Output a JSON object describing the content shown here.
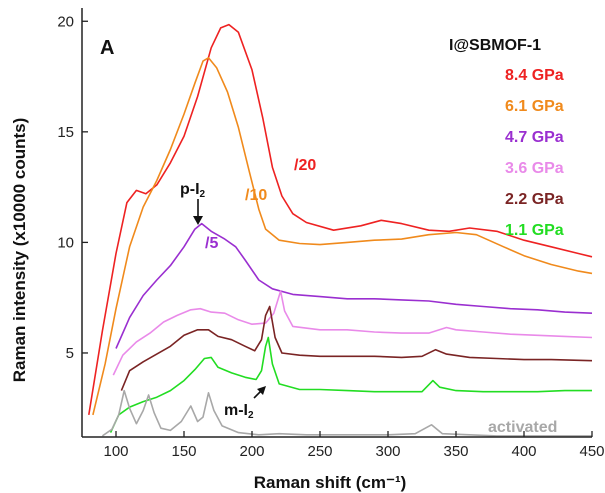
{
  "chart_data": {
    "type": "line",
    "panel_label": "A",
    "legend_title": "I@SBMOF-1",
    "xlabel": "Raman shift (cm⁻¹)",
    "ylabel": "Raman intensity (x10000 counts)",
    "xlim": [
      75,
      450
    ],
    "ylim": [
      1.2,
      20.6
    ],
    "xticks": [
      100,
      150,
      200,
      250,
      300,
      350,
      400,
      450
    ],
    "yticks": [
      5,
      10,
      15,
      20
    ],
    "grid": false,
    "legend_position": "top-right",
    "series": [
      {
        "name": "8.4 GPa",
        "color": "#ee2222",
        "scale_label": "/20",
        "points": [
          [
            80,
            2.2
          ],
          [
            90,
            6
          ],
          [
            100,
            9.5
          ],
          [
            108,
            11.8
          ],
          [
            115,
            12.35
          ],
          [
            122,
            12.2
          ],
          [
            130,
            12.6
          ],
          [
            140,
            13.6
          ],
          [
            150,
            14.8
          ],
          [
            160,
            16.6
          ],
          [
            170,
            18.8
          ],
          [
            177,
            19.7
          ],
          [
            183,
            19.85
          ],
          [
            190,
            19.5
          ],
          [
            200,
            17.8
          ],
          [
            208,
            15.6
          ],
          [
            215,
            13.4
          ],
          [
            222,
            12.1
          ],
          [
            230,
            11.3
          ],
          [
            240,
            10.9
          ],
          [
            260,
            10.55
          ],
          [
            280,
            10.75
          ],
          [
            295,
            11
          ],
          [
            310,
            10.85
          ],
          [
            330,
            10.55
          ],
          [
            345,
            10.5
          ],
          [
            360,
            10.65
          ],
          [
            380,
            10.5
          ],
          [
            400,
            10.1
          ],
          [
            420,
            9.8
          ],
          [
            440,
            9.5
          ],
          [
            450,
            9.35
          ]
        ]
      },
      {
        "name": "6.1 GPa",
        "color": "#f08a1c",
        "scale_label": "/10",
        "points": [
          [
            83,
            2.2
          ],
          [
            92,
            4.5
          ],
          [
            100,
            7
          ],
          [
            110,
            9.8
          ],
          [
            120,
            11.6
          ],
          [
            130,
            12.8
          ],
          [
            140,
            14.2
          ],
          [
            150,
            15.8
          ],
          [
            158,
            17.2
          ],
          [
            164,
            18.2
          ],
          [
            168,
            18.35
          ],
          [
            174,
            17.9
          ],
          [
            182,
            16.8
          ],
          [
            190,
            15.2
          ],
          [
            198,
            13.2
          ],
          [
            205,
            11.5
          ],
          [
            210,
            10.6
          ],
          [
            220,
            10.1
          ],
          [
            235,
            9.95
          ],
          [
            250,
            9.9
          ],
          [
            270,
            10
          ],
          [
            290,
            10.1
          ],
          [
            310,
            10.15
          ],
          [
            330,
            10.35
          ],
          [
            350,
            10.45
          ],
          [
            365,
            10.35
          ],
          [
            385,
            9.8
          ],
          [
            400,
            9.4
          ],
          [
            420,
            9
          ],
          [
            440,
            8.7
          ],
          [
            450,
            8.6
          ]
        ]
      },
      {
        "name": "4.7 GPa",
        "color": "#9a2fd0",
        "scale_label": "/5",
        "points": [
          [
            100,
            5.2
          ],
          [
            110,
            6.6
          ],
          [
            120,
            7.6
          ],
          [
            130,
            8.3
          ],
          [
            140,
            8.95
          ],
          [
            150,
            9.8
          ],
          [
            158,
            10.6
          ],
          [
            163,
            10.85
          ],
          [
            170,
            10.5
          ],
          [
            180,
            10.15
          ],
          [
            188,
            9.8
          ],
          [
            195,
            9.2
          ],
          [
            205,
            8.3
          ],
          [
            215,
            7.9
          ],
          [
            230,
            7.65
          ],
          [
            250,
            7.55
          ],
          [
            270,
            7.45
          ],
          [
            290,
            7.45
          ],
          [
            310,
            7.4
          ],
          [
            330,
            7.35
          ],
          [
            350,
            7.2
          ],
          [
            370,
            7.1
          ],
          [
            390,
            7.0
          ],
          [
            410,
            6.95
          ],
          [
            430,
            6.85
          ],
          [
            450,
            6.8
          ]
        ]
      },
      {
        "name": "3.6 GPa",
        "color": "#e98ae9",
        "scale_label": "",
        "points": [
          [
            98,
            4.0
          ],
          [
            105,
            4.9
          ],
          [
            115,
            5.5
          ],
          [
            125,
            5.9
          ],
          [
            135,
            6.4
          ],
          [
            145,
            6.7
          ],
          [
            155,
            6.95
          ],
          [
            162,
            7.0
          ],
          [
            170,
            6.85
          ],
          [
            180,
            6.8
          ],
          [
            190,
            6.5
          ],
          [
            200,
            6.3
          ],
          [
            210,
            6.35
          ],
          [
            216,
            6.8
          ],
          [
            221,
            7.8
          ],
          [
            224,
            6.9
          ],
          [
            230,
            6.2
          ],
          [
            250,
            6.05
          ],
          [
            270,
            6.05
          ],
          [
            290,
            5.95
          ],
          [
            310,
            5.9
          ],
          [
            330,
            5.9
          ],
          [
            343,
            6.15
          ],
          [
            350,
            6.05
          ],
          [
            370,
            5.95
          ],
          [
            390,
            5.85
          ],
          [
            410,
            5.8
          ],
          [
            430,
            5.75
          ],
          [
            450,
            5.7
          ]
        ]
      },
      {
        "name": "2.2 GPa",
        "color": "#7a2424",
        "scale_label": "",
        "points": [
          [
            104,
            3.3
          ],
          [
            110,
            4.2
          ],
          [
            120,
            4.6
          ],
          [
            130,
            4.95
          ],
          [
            140,
            5.3
          ],
          [
            150,
            5.8
          ],
          [
            160,
            6.05
          ],
          [
            168,
            6.05
          ],
          [
            175,
            5.75
          ],
          [
            185,
            5.6
          ],
          [
            195,
            5.3
          ],
          [
            202,
            5.1
          ],
          [
            207,
            5.6
          ],
          [
            210,
            6.7
          ],
          [
            213,
            7.1
          ],
          [
            217,
            5.7
          ],
          [
            222,
            5.0
          ],
          [
            235,
            4.9
          ],
          [
            250,
            4.85
          ],
          [
            270,
            4.85
          ],
          [
            290,
            4.85
          ],
          [
            310,
            4.8
          ],
          [
            325,
            4.85
          ],
          [
            335,
            5.15
          ],
          [
            343,
            4.95
          ],
          [
            360,
            4.8
          ],
          [
            380,
            4.75
          ],
          [
            400,
            4.7
          ],
          [
            420,
            4.7
          ],
          [
            450,
            4.65
          ]
        ]
      },
      {
        "name": "1.1 GPa",
        "color": "#22dd22",
        "scale_label": "",
        "points": [
          [
            96,
            1.4
          ],
          [
            102,
            2.2
          ],
          [
            110,
            2.55
          ],
          [
            120,
            2.8
          ],
          [
            130,
            3.0
          ],
          [
            140,
            3.3
          ],
          [
            150,
            3.75
          ],
          [
            158,
            4.25
          ],
          [
            165,
            4.75
          ],
          [
            170,
            4.8
          ],
          [
            175,
            4.35
          ],
          [
            185,
            4.1
          ],
          [
            195,
            3.9
          ],
          [
            203,
            3.8
          ],
          [
            207,
            4.2
          ],
          [
            210,
            5.3
          ],
          [
            212,
            5.7
          ],
          [
            215,
            4.5
          ],
          [
            220,
            3.6
          ],
          [
            235,
            3.35
          ],
          [
            250,
            3.35
          ],
          [
            270,
            3.3
          ],
          [
            290,
            3.25
          ],
          [
            310,
            3.25
          ],
          [
            325,
            3.25
          ],
          [
            333,
            3.75
          ],
          [
            338,
            3.45
          ],
          [
            350,
            3.3
          ],
          [
            370,
            3.25
          ],
          [
            390,
            3.25
          ],
          [
            410,
            3.25
          ],
          [
            430,
            3.3
          ],
          [
            450,
            3.3
          ]
        ]
      },
      {
        "name": "activated",
        "color": "#a8a8a8",
        "scale_label": "",
        "points": [
          [
            90,
            1.25
          ],
          [
            97,
            1.55
          ],
          [
            102,
            2.2
          ],
          [
            106,
            3.3
          ],
          [
            110,
            2.5
          ],
          [
            115,
            1.8
          ],
          [
            120,
            2.4
          ],
          [
            124,
            3.1
          ],
          [
            128,
            2.3
          ],
          [
            133,
            1.6
          ],
          [
            140,
            1.5
          ],
          [
            148,
            1.9
          ],
          [
            155,
            2.6
          ],
          [
            160,
            1.9
          ],
          [
            164,
            2.1
          ],
          [
            168,
            3.2
          ],
          [
            172,
            2.4
          ],
          [
            178,
            1.7
          ],
          [
            190,
            1.4
          ],
          [
            205,
            1.3
          ],
          [
            220,
            1.35
          ],
          [
            240,
            1.3
          ],
          [
            260,
            1.3
          ],
          [
            280,
            1.3
          ],
          [
            300,
            1.3
          ],
          [
            320,
            1.35
          ],
          [
            332,
            1.75
          ],
          [
            340,
            1.35
          ],
          [
            360,
            1.3
          ],
          [
            380,
            1.25
          ],
          [
            400,
            1.25
          ],
          [
            420,
            1.25
          ],
          [
            450,
            1.25
          ]
        ]
      }
    ],
    "annotations": {
      "p_i2": "p-I",
      "p_i2_sub": "2",
      "m_i2": "m-I",
      "m_i2_sub": "2"
    }
  }
}
